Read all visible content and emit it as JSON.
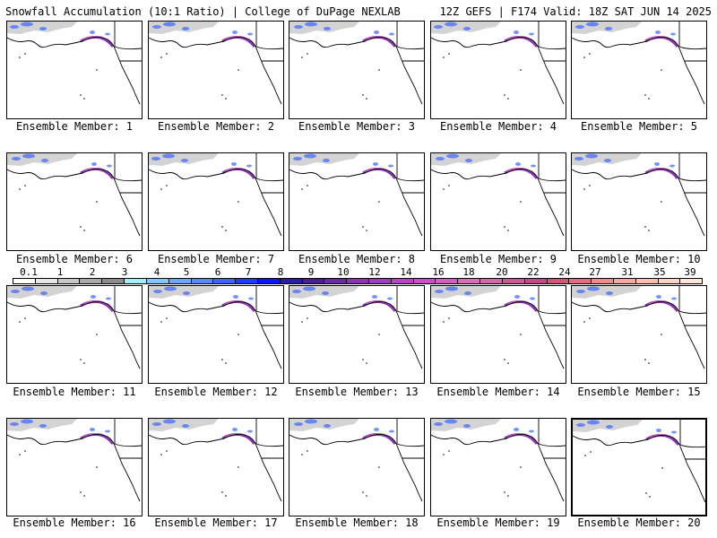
{
  "header": {
    "title_left": "Snowfall Accumulation (10:1 Ratio) | College of DuPage NEXLAB",
    "title_right": "12Z GEFS | F174 Valid: 18Z SAT JUN 14 2025"
  },
  "panels": [
    {
      "caption": "Ensemble Member: 1"
    },
    {
      "caption": "Ensemble Member: 2"
    },
    {
      "caption": "Ensemble Member: 3"
    },
    {
      "caption": "Ensemble Member: 4"
    },
    {
      "caption": "Ensemble Member: 5"
    },
    {
      "caption": "Ensemble Member: 6"
    },
    {
      "caption": "Ensemble Member: 7"
    },
    {
      "caption": "Ensemble Member: 8"
    },
    {
      "caption": "Ensemble Member: 9"
    },
    {
      "caption": "Ensemble Member: 10"
    },
    {
      "caption": "Ensemble Member: 11"
    },
    {
      "caption": "Ensemble Member: 12"
    },
    {
      "caption": "Ensemble Member: 13"
    },
    {
      "caption": "Ensemble Member: 14"
    },
    {
      "caption": "Ensemble Member: 15"
    },
    {
      "caption": "Ensemble Member: 16"
    },
    {
      "caption": "Ensemble Member: 17"
    },
    {
      "caption": "Ensemble Member: 18"
    },
    {
      "caption": "Ensemble Member: 19"
    },
    {
      "caption": "Ensemble Member: 20"
    }
  ],
  "colorbar": {
    "labels": [
      "0.1",
      "1",
      "2",
      "3",
      "4",
      "5",
      "6",
      "7",
      "8",
      "9",
      "10",
      "12",
      "14",
      "16",
      "18",
      "20",
      "22",
      "24",
      "27",
      "31",
      "35",
      "39"
    ],
    "colors": [
      "#ffffff",
      "#e6e6e6",
      "#c8c8c8",
      "#aaaaaa",
      "#8c8c8c",
      "#a0f0ff",
      "#80c8ff",
      "#6aa8ff",
      "#5a88ff",
      "#3c64ff",
      "#1e3cff",
      "#0a14ff",
      "#2a1ea0",
      "#4a2090",
      "#6a2aa0",
      "#8a34b0",
      "#a03cc0",
      "#b844c8",
      "#c850c8",
      "#d060c0",
      "#d870b8",
      "#d06aa8",
      "#c85a98",
      "#c04a88",
      "#d05878",
      "#e07080",
      "#f08c8c",
      "#f8a8a0",
      "#fcc0b0",
      "#fdd4c4",
      "#ffe6d8"
    ]
  },
  "map_colors": {
    "land_gray": "#c8c8c8",
    "snow_blue": "#3c64ff",
    "snow_purple": "#8a34b0",
    "snow_pink": "#d060c0"
  }
}
